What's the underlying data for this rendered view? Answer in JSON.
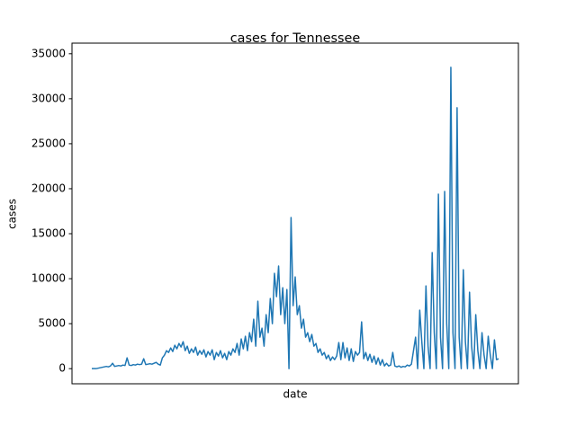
{
  "chart_data": {
    "type": "line",
    "title": "cases for Tennessee",
    "xlabel": "date",
    "ylabel": "cases",
    "color": "#1f77b4",
    "ylim": [
      -1680,
      36180
    ],
    "yticks": [
      0,
      5000,
      10000,
      15000,
      20000,
      25000,
      30000,
      35000
    ],
    "values": [
      0,
      0,
      0,
      50,
      100,
      150,
      200,
      250,
      200,
      300,
      600,
      250,
      300,
      350,
      300,
      400,
      350,
      1200,
      400,
      350,
      450,
      400,
      500,
      450,
      500,
      1100,
      450,
      500,
      550,
      500,
      600,
      700,
      500,
      400,
      1200,
      1500,
      2000,
      1800,
      2300,
      1900,
      2600,
      2200,
      2800,
      2400,
      3000,
      2000,
      2500,
      1700,
      2200,
      1800,
      2400,
      1500,
      2000,
      1600,
      2100,
      1300,
      1900,
      1500,
      2100,
      1000,
      1800,
      1400,
      2000,
      1200,
      1700,
      1000,
      1900,
      1500,
      2200,
      1800,
      2800,
      1500,
      3300,
      2200,
      3600,
      2000,
      4000,
      3000,
      5500,
      2500,
      7500,
      3500,
      4500,
      2500,
      6000,
      4000,
      7800,
      5000,
      10600,
      8000,
      11400,
      6000,
      9000,
      5000,
      8800,
      0,
      16800,
      7000,
      10200,
      6000,
      7000,
      4500,
      5500,
      3500,
      4000,
      3000,
      3800,
      2500,
      2800,
      1800,
      2200,
      1500,
      1800,
      1100,
      1500,
      900,
      1300,
      1000,
      1400,
      2900,
      1000,
      2900,
      1200,
      2300,
      900,
      2200,
      800,
      1900,
      1500,
      1800,
      5200,
      1100,
      1800,
      900,
      1600,
      700,
      1400,
      500,
      1200,
      400,
      1000,
      300,
      600,
      300,
      400,
      1800,
      300,
      200,
      300,
      150,
      250,
      200,
      400,
      300,
      500,
      2000,
      3500,
      0,
      6500,
      3000,
      0,
      9200,
      2500,
      0,
      12900,
      4000,
      0,
      19400,
      3500,
      0,
      19700,
      5000,
      0,
      33500,
      4000,
      0,
      29000,
      3500,
      0,
      11000,
      3000,
      0,
      8500,
      2500,
      0,
      6000,
      2000,
      0,
      4000,
      1500,
      0,
      3600,
      1500,
      0,
      3200,
      1000,
      1100
    ]
  }
}
